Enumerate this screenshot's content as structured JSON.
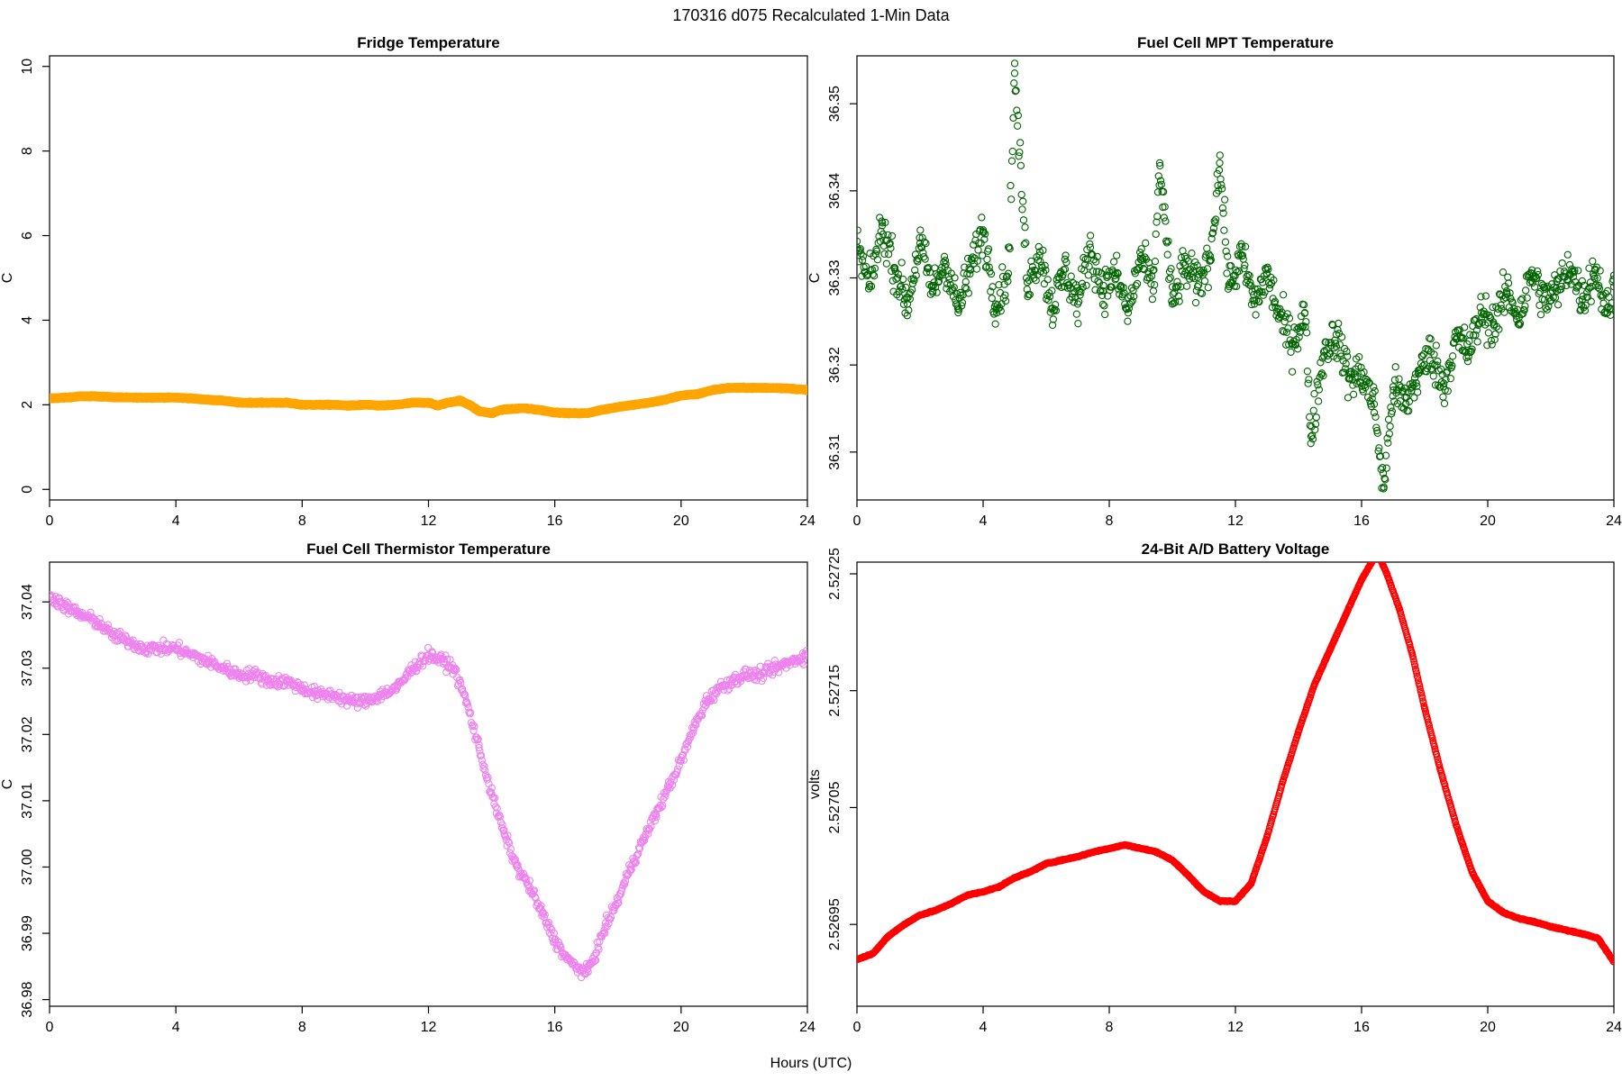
{
  "figure": {
    "title": "170316   d075   Recalculated 1-Min Data",
    "xlabel": "Hours (UTC)"
  },
  "chart_data": [
    {
      "type": "scatter",
      "title": "Fridge Temperature",
      "xlabel": "Hours (UTC)",
      "ylabel": "C",
      "xlim": [
        0,
        24
      ],
      "ylim": [
        -0.25,
        10.25
      ],
      "xticks": [
        0,
        4,
        8,
        12,
        16,
        20,
        24
      ],
      "yticks": [
        0,
        2,
        4,
        6,
        8,
        10
      ],
      "xtick_labels": [
        "0",
        "4",
        "8",
        "12",
        "16",
        "20",
        "24"
      ],
      "ytick_labels": [
        "0",
        "2",
        "4",
        "6",
        "8",
        "10"
      ],
      "grid": false,
      "marker": "filled-circle",
      "color": "#FFA500",
      "series": [
        {
          "x": [
            0,
            0.5,
            1,
            1.5,
            2,
            2.5,
            3,
            3.5,
            4,
            4.5,
            5,
            5.5,
            6,
            6.5,
            7,
            7.5,
            8,
            8.5,
            9,
            9.5,
            10,
            10.5,
            11,
            11.5,
            12,
            12.3,
            12.6,
            13,
            13.3,
            13.6,
            14,
            14.3,
            14.6,
            15,
            15.5,
            16,
            16.5,
            17,
            17.5,
            18,
            18.5,
            19,
            19.5,
            20,
            20.5,
            21,
            21.5,
            22,
            22.5,
            23,
            23.5,
            24
          ],
          "y": [
            2.15,
            2.17,
            2.2,
            2.2,
            2.18,
            2.17,
            2.17,
            2.17,
            2.17,
            2.15,
            2.12,
            2.1,
            2.05,
            2.05,
            2.05,
            2.05,
            2.0,
            2.0,
            2.0,
            1.98,
            2.0,
            1.98,
            2.0,
            2.05,
            2.05,
            1.98,
            2.05,
            2.1,
            2.0,
            1.85,
            1.8,
            1.88,
            1.9,
            1.92,
            1.88,
            1.82,
            1.8,
            1.8,
            1.88,
            1.95,
            2.0,
            2.05,
            2.12,
            2.22,
            2.25,
            2.35,
            2.4,
            2.4,
            2.4,
            2.4,
            2.38,
            2.35
          ]
        }
      ]
    },
    {
      "type": "scatter",
      "title": "Fuel Cell MPT Temperature",
      "xlabel": "Hours (UTC)",
      "ylabel": "C",
      "xlim": [
        0,
        24
      ],
      "ylim": [
        36.3045,
        36.3555
      ],
      "xticks": [
        0,
        4,
        8,
        12,
        16,
        20,
        24
      ],
      "yticks": [
        36.31,
        36.32,
        36.33,
        36.34,
        36.35
      ],
      "xtick_labels": [
        "0",
        "4",
        "8",
        "12",
        "16",
        "20",
        "24"
      ],
      "ytick_labels": [
        "36.31",
        "36.32",
        "36.33",
        "36.34",
        "36.35"
      ],
      "grid": false,
      "marker": "open-circle",
      "color": "#006400",
      "series": [
        {
          "x": [
            0,
            0.4,
            0.8,
            1.2,
            1.6,
            2.0,
            2.4,
            2.8,
            3.2,
            3.6,
            4.0,
            4.4,
            4.8,
            5.0,
            5.4,
            5.8,
            6.2,
            6.6,
            7.0,
            7.4,
            7.8,
            8.2,
            8.6,
            9.0,
            9.4,
            9.6,
            10.0,
            10.4,
            10.8,
            11.2,
            11.5,
            11.8,
            12.2,
            12.6,
            13.0,
            13.4,
            13.8,
            14.2,
            14.4,
            14.8,
            15.2,
            15.6,
            16.0,
            16.4,
            16.7,
            17.0,
            17.4,
            17.8,
            18.2,
            18.6,
            19.0,
            19.4,
            19.8,
            20.2,
            20.6,
            21.0,
            21.4,
            21.8,
            22.2,
            22.6,
            23.0,
            23.4,
            23.8,
            24.0
          ],
          "y": [
            36.3335,
            36.329,
            36.336,
            36.331,
            36.327,
            36.334,
            36.3285,
            36.332,
            36.3265,
            36.331,
            36.3355,
            36.327,
            36.3305,
            36.3535,
            36.3295,
            36.333,
            36.3265,
            36.331,
            36.327,
            36.3335,
            36.3285,
            36.3305,
            36.326,
            36.3325,
            36.3285,
            36.3432,
            36.327,
            36.3315,
            36.329,
            36.3325,
            36.3432,
            36.329,
            36.3325,
            36.327,
            36.3305,
            36.3255,
            36.3225,
            36.326,
            36.3118,
            36.3215,
            36.3235,
            36.3185,
            36.319,
            36.3155,
            36.3058,
            36.3175,
            36.3155,
            36.319,
            36.3215,
            36.3175,
            36.323,
            36.3215,
            36.326,
            36.3245,
            36.3285,
            36.3255,
            36.3305,
            36.3275,
            36.3285,
            36.3315,
            36.3275,
            36.331,
            36.326,
            36.329
          ]
        }
      ]
    },
    {
      "type": "scatter",
      "title": "Fuel Cell Thermistor Temperature",
      "xlabel": "Hours (UTC)",
      "ylabel": "C",
      "xlim": [
        0,
        24
      ],
      "ylim": [
        36.979,
        37.046
      ],
      "xticks": [
        0,
        4,
        8,
        12,
        16,
        20,
        24
      ],
      "yticks": [
        36.98,
        36.99,
        37.0,
        37.01,
        37.02,
        37.03,
        37.04
      ],
      "xtick_labels": [
        "0",
        "4",
        "8",
        "12",
        "16",
        "20",
        "24"
      ],
      "ytick_labels": [
        "36.98",
        "36.99",
        "37.00",
        "37.01",
        "37.02",
        "37.03",
        "37.04"
      ],
      "grid": false,
      "marker": "open-circle",
      "color": "#EE82EE",
      "series": [
        {
          "x": [
            0,
            0.3,
            0.6,
            1.0,
            1.5,
            2.0,
            2.5,
            3.0,
            3.5,
            4.0,
            4.5,
            5.0,
            5.5,
            6.0,
            6.5,
            7.0,
            7.5,
            8.0,
            8.5,
            9.0,
            9.5,
            10.0,
            10.5,
            11.0,
            11.5,
            12.0,
            12.5,
            12.8,
            13.2,
            13.6,
            14.0,
            14.4,
            14.8,
            15.2,
            15.6,
            16.0,
            16.4,
            16.8,
            17.0,
            17.3,
            17.6,
            18.0,
            18.4,
            18.8,
            19.2,
            19.6,
            20.0,
            20.4,
            20.8,
            21.2,
            21.6,
            22.0,
            22.5,
            23.0,
            23.5,
            24.0
          ],
          "y": [
            37.041,
            37.04,
            37.039,
            37.038,
            37.037,
            37.035,
            37.034,
            37.033,
            37.033,
            37.033,
            37.032,
            37.031,
            37.03,
            37.029,
            37.029,
            37.028,
            37.028,
            37.027,
            37.026,
            37.026,
            37.025,
            37.025,
            37.026,
            37.027,
            37.03,
            37.032,
            37.031,
            37.03,
            37.025,
            37.018,
            37.011,
            37.005,
            37.0,
            36.997,
            36.993,
            36.989,
            36.986,
            36.9845,
            36.984,
            36.987,
            36.991,
            36.995,
            37.0,
            37.004,
            37.008,
            37.012,
            37.016,
            37.021,
            37.025,
            37.027,
            37.028,
            37.029,
            37.029,
            37.03,
            37.031,
            37.032
          ]
        }
      ]
    },
    {
      "type": "scatter",
      "title": "24-Bit A/D Battery Voltage",
      "xlabel": "Hours (UTC)",
      "ylabel": "volts",
      "xlim": [
        0,
        24
      ],
      "ylim": [
        2.52688,
        2.52726
      ],
      "xticks": [
        0,
        4,
        8,
        12,
        16,
        20,
        24
      ],
      "yticks": [
        2.52695,
        2.52705,
        2.52715,
        2.52725
      ],
      "xtick_labels": [
        "0",
        "4",
        "8",
        "12",
        "16",
        "20",
        "24"
      ],
      "ytick_labels": [
        "2.52695",
        "2.52705",
        "2.52715",
        "2.52725"
      ],
      "grid": false,
      "marker": "open-circle",
      "color": "#FF0000",
      "series": [
        {
          "x": [
            0,
            0.5,
            1,
            1.5,
            2,
            2.5,
            3,
            3.5,
            4,
            4.5,
            5,
            5.5,
            6,
            6.5,
            7,
            7.5,
            8,
            8.5,
            9,
            9.5,
            10,
            10.5,
            11,
            11.5,
            12,
            12.5,
            13,
            13.5,
            14,
            14.5,
            15,
            15.5,
            16,
            16.5,
            16.8,
            17.2,
            17.6,
            18,
            18.5,
            19,
            19.5,
            20,
            20.5,
            21,
            21.5,
            22,
            22.5,
            23,
            23.5,
            24
          ],
          "y": [
            2.52692,
            2.526925,
            2.52694,
            2.52695,
            2.526958,
            2.526962,
            2.526968,
            2.526975,
            2.526978,
            2.526982,
            2.52699,
            2.526995,
            2.527002,
            2.527005,
            2.527008,
            2.527012,
            2.527015,
            2.527018,
            2.527015,
            2.527012,
            2.527005,
            2.526992,
            2.526978,
            2.52697,
            2.52697,
            2.526985,
            2.527025,
            2.527072,
            2.527115,
            2.527155,
            2.527185,
            2.527215,
            2.527245,
            2.527268,
            2.52725,
            2.52722,
            2.527182,
            2.527135,
            2.527082,
            2.527035,
            2.526995,
            2.52697,
            2.52696,
            2.526955,
            2.526952,
            2.526948,
            2.526945,
            2.526942,
            2.526938,
            2.526918
          ]
        }
      ]
    }
  ]
}
